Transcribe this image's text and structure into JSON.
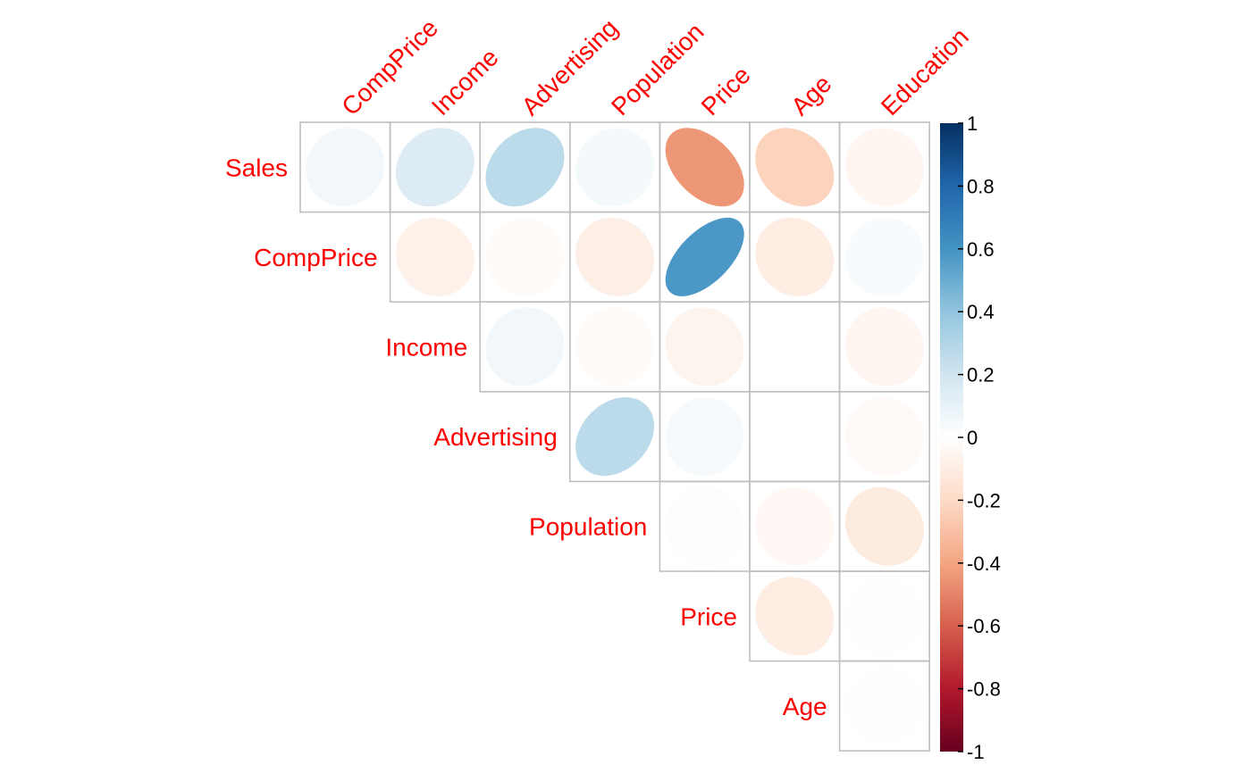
{
  "chart_data": {
    "type": "heatmap",
    "style": "ellipse correlation matrix, upper triangle",
    "row_labels": [
      "Sales",
      "CompPrice",
      "Income",
      "Advertising",
      "Population",
      "Price",
      "Age"
    ],
    "col_labels": [
      "CompPrice",
      "Income",
      "Advertising",
      "Population",
      "Price",
      "Age",
      "Education"
    ],
    "values": [
      [
        0.06,
        0.15,
        0.27,
        0.05,
        -0.44,
        -0.23,
        -0.05
      ],
      [
        null,
        -0.08,
        -0.02,
        -0.09,
        0.58,
        -0.1,
        0.03
      ],
      [
        null,
        null,
        0.06,
        -0.02,
        -0.06,
        -0.0,
        -0.05
      ],
      [
        null,
        null,
        null,
        0.27,
        0.04,
        -0.0,
        -0.03
      ],
      [
        null,
        null,
        null,
        null,
        -0.01,
        -0.04,
        -0.11
      ],
      [
        null,
        null,
        null,
        null,
        null,
        -0.1,
        0.01
      ],
      [
        null,
        null,
        null,
        null,
        null,
        null,
        0.01
      ]
    ],
    "color_scale": {
      "min": -1,
      "max": 1,
      "ticks": [
        1,
        0.8,
        0.6,
        0.4,
        0.2,
        0,
        -0.2,
        -0.4,
        -0.6,
        -0.8,
        -1
      ],
      "tick_labels": [
        "1",
        "0.8",
        "0.6",
        "0.4",
        "0.2",
        "0",
        "-0.2",
        "-0.4",
        "-0.6",
        "-0.8",
        "-1"
      ],
      "stops": [
        "#67001f",
        "#b2182b",
        "#d6604d",
        "#f4a582",
        "#fddbc7",
        "#ffffff",
        "#d1e5f0",
        "#92c5de",
        "#4393c3",
        "#2166ac",
        "#053061"
      ]
    },
    "label_color": "#ff0000",
    "grid_color": "#bfbfbf",
    "legend_placement": "right"
  }
}
